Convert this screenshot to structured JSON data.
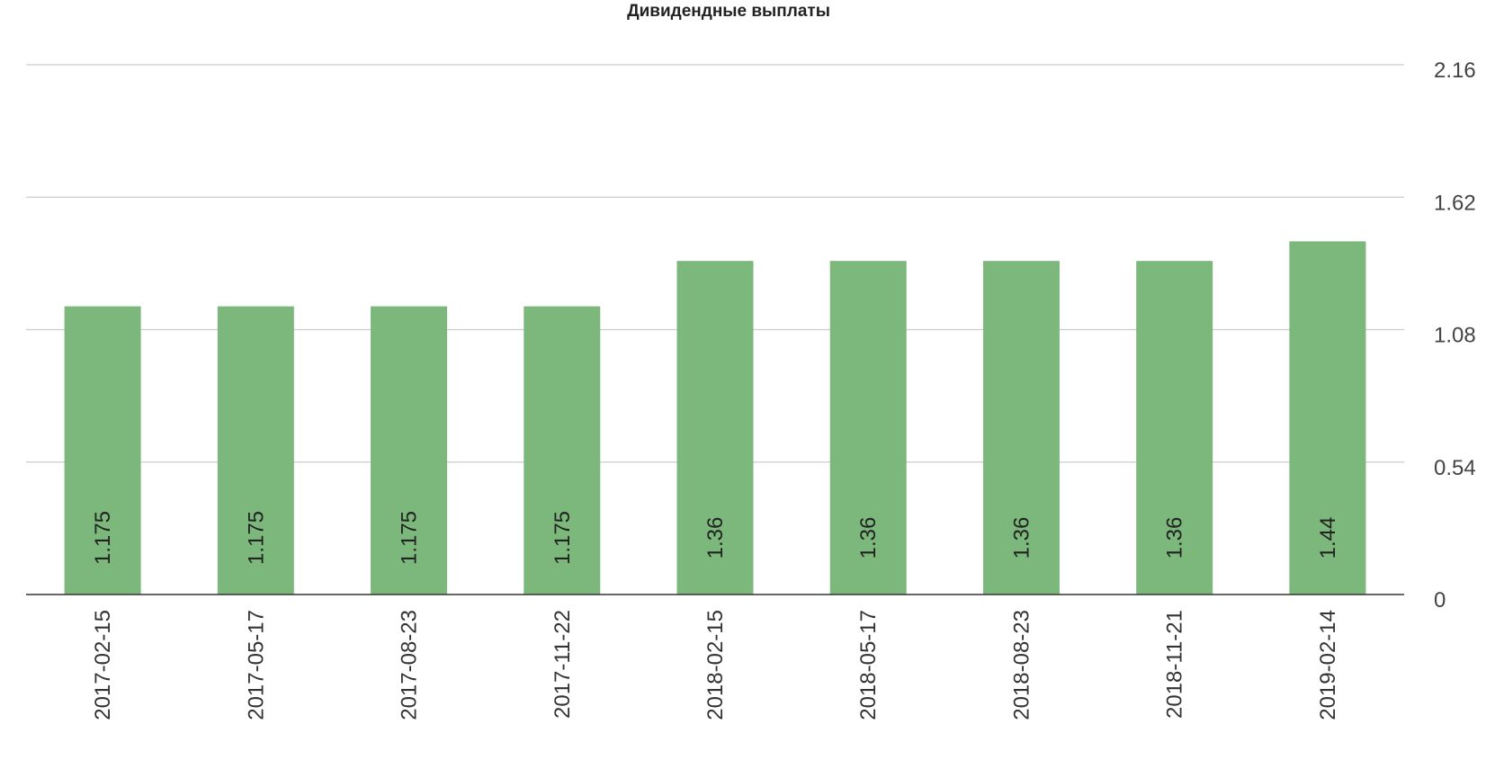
{
  "chart_data": {
    "type": "bar",
    "title": "Дивидендные выплаты",
    "xlabel": "",
    "ylabel": "",
    "categories": [
      "2017-02-15",
      "2017-05-17",
      "2017-08-23",
      "2017-11-22",
      "2018-02-15",
      "2018-05-17",
      "2018-08-23",
      "2018-11-21",
      "2019-02-14"
    ],
    "values": [
      1.175,
      1.175,
      1.175,
      1.175,
      1.36,
      1.36,
      1.36,
      1.36,
      1.44
    ],
    "data_labels": [
      "1.175",
      "1.175",
      "1.175",
      "1.175",
      "1.36",
      "1.36",
      "1.36",
      "1.36",
      "1.44"
    ],
    "ylim": [
      0,
      2.16
    ],
    "yticks": [
      "0",
      "0.54",
      "1.08",
      "1.62",
      "2.16"
    ],
    "y_axis_position": "right",
    "grid": true,
    "legend": "none",
    "bar_color": "#7cb87c"
  }
}
